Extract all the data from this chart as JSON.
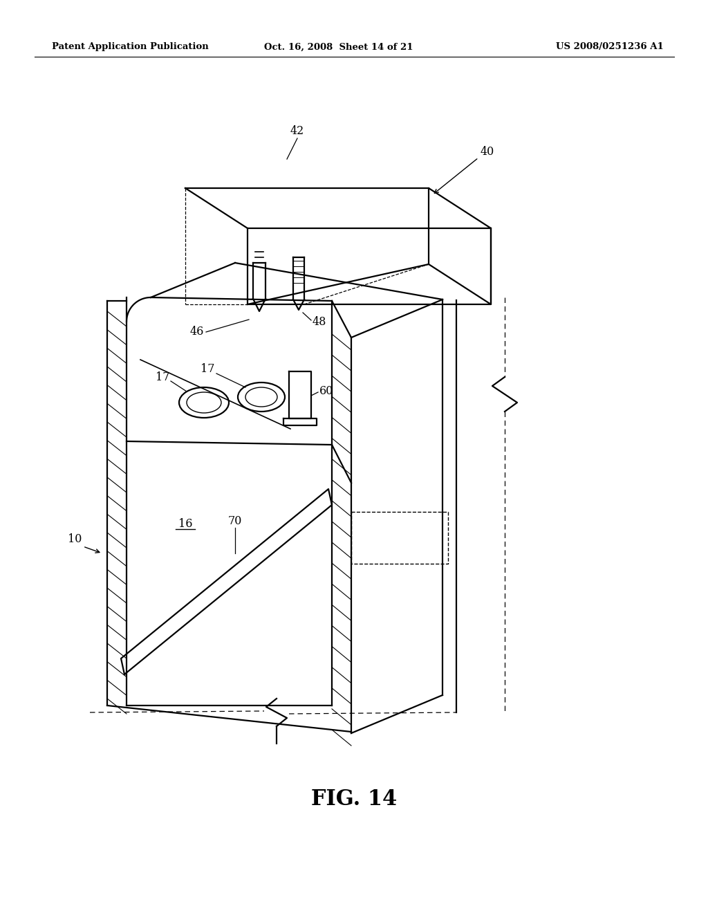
{
  "bg_color": "#ffffff",
  "line_color": "#000000",
  "header_left": "Patent Application Publication",
  "header_mid": "Oct. 16, 2008  Sheet 14 of 21",
  "header_right": "US 2008/0251236 A1",
  "fig_label": "FIG. 14"
}
